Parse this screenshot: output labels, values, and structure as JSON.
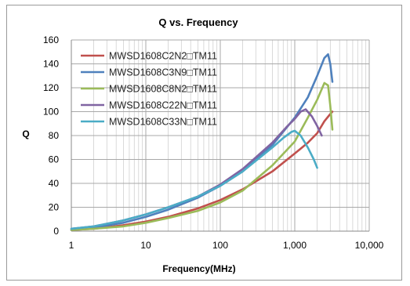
{
  "chart_data": {
    "type": "line",
    "title": "Q vs. Frequency",
    "xlabel": "Frequency(MHz)",
    "ylabel": "Q",
    "x_scale": "log",
    "xlim": [
      1,
      10000
    ],
    "ylim": [
      0,
      160
    ],
    "x_ticks": [
      1,
      10,
      100,
      1000,
      10000
    ],
    "x_tick_labels": [
      "1",
      "10",
      "100",
      "1,000",
      "10,000"
    ],
    "y_ticks": [
      0,
      20,
      40,
      60,
      80,
      100,
      120,
      140,
      160
    ],
    "y_tick_labels": [
      "0",
      "20",
      "40",
      "60",
      "80",
      "100",
      "120",
      "140",
      "160"
    ],
    "grid": true,
    "legend_position": "top-left",
    "series": [
      {
        "name": "MWSD1608C2N2□TM11",
        "color": "#c0504d",
        "x": [
          1,
          2,
          5,
          10,
          20,
          50,
          100,
          200,
          500,
          1000,
          1500,
          2000,
          2500,
          3000,
          3200
        ],
        "y": [
          1,
          2,
          5,
          8,
          12,
          19,
          26,
          35,
          50,
          65,
          74,
          82,
          92,
          98,
          100
        ]
      },
      {
        "name": "MWSD1608C3N9□TM11",
        "color": "#4f81bd",
        "x": [
          1,
          2,
          5,
          10,
          20,
          50,
          100,
          200,
          500,
          1000,
          1500,
          2000,
          2500,
          2800,
          3000,
          3200
        ],
        "y": [
          1,
          3,
          7,
          12,
          18,
          28,
          38,
          50,
          72,
          95,
          112,
          130,
          145,
          148,
          140,
          125
        ]
      },
      {
        "name": "MWSD1608C8N2□TM11",
        "color": "#9bbb59",
        "x": [
          1,
          2,
          5,
          10,
          20,
          50,
          100,
          200,
          500,
          1000,
          1500,
          2000,
          2500,
          2800,
          3000,
          3200
        ],
        "y": [
          1,
          2,
          4,
          7,
          11,
          17,
          24,
          34,
          55,
          75,
          95,
          110,
          124,
          122,
          105,
          85
        ]
      },
      {
        "name": "MWSD1608C22N□TM11",
        "color": "#8064a2",
        "x": [
          1,
          2,
          5,
          10,
          20,
          50,
          100,
          200,
          500,
          800,
          1000,
          1200,
          1400,
          1700,
          2000,
          2300
        ],
        "y": [
          2,
          4,
          9,
          14,
          20,
          29,
          39,
          52,
          74,
          88,
          94,
          100,
          102,
          96,
          88,
          80
        ]
      },
      {
        "name": "MWSD1608C33N□TM11",
        "color": "#4bacc6",
        "x": [
          1,
          2,
          5,
          10,
          20,
          50,
          100,
          200,
          500,
          700,
          900,
          1000,
          1200,
          1500,
          1800,
          2000
        ],
        "y": [
          2,
          4,
          9,
          14,
          20,
          29,
          38,
          50,
          70,
          78,
          83,
          84,
          80,
          70,
          60,
          53
        ]
      }
    ]
  }
}
